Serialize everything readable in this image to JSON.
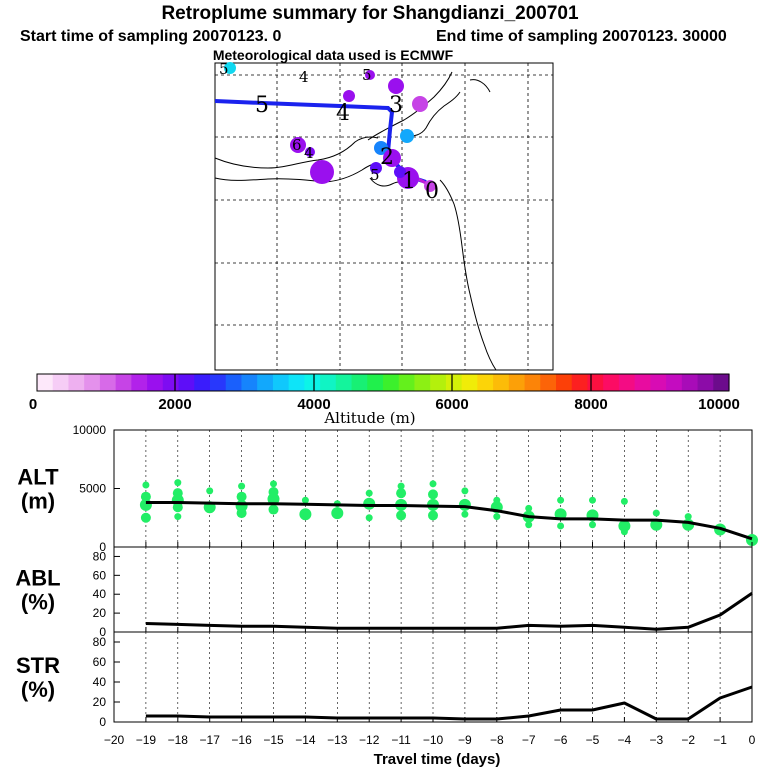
{
  "header": {
    "title": "Retroplume summary for Shangdianzi_200701",
    "start_time": "Start time of sampling 20070123.    0",
    "end_time": "End time of sampling 20070123. 30000",
    "met_data": "Meteorological data used is ECMWF"
  },
  "colorbar": {
    "label": "Altitude  (m)",
    "ticks": [
      "0",
      "2000",
      "4000",
      "6000",
      "8000",
      "10000"
    ],
    "colors": [
      "#fde8fa",
      "#f6cdf6",
      "#eeb0f0",
      "#e491ec",
      "#d76ae8",
      "#c644e6",
      "#b222ea",
      "#9a10ee",
      "#7e0cf2",
      "#5e0ef8",
      "#3a1cfc",
      "#2838fc",
      "#1a60fc",
      "#1684fc",
      "#12a8fc",
      "#10c8fc",
      "#0ee4f8",
      "#0cf4e8",
      "#10f4c4",
      "#14f49c",
      "#18f074",
      "#20f04c",
      "#3cf02c",
      "#64f01c",
      "#8cf014",
      "#b4f00c",
      "#d4f008",
      "#f0ec08",
      "#fcd408",
      "#fcbc08",
      "#fca008",
      "#fc8408",
      "#fc6408",
      "#fc4008",
      "#fc2020",
      "#fc1040",
      "#fc0c64",
      "#f40c84",
      "#e80ca0",
      "#d80cb4",
      "#c40cc0",
      "#a80cb8",
      "#8c0ca8",
      "#6c0c8c"
    ]
  },
  "map": {
    "day_labels": [
      {
        "text": "5",
        "kind": "big"
      },
      {
        "text": "4",
        "kind": "big"
      },
      {
        "text": "3",
        "kind": "big"
      },
      {
        "text": "2",
        "kind": "big"
      },
      {
        "text": "1",
        "kind": "big"
      },
      {
        "text": "0",
        "kind": "big"
      },
      {
        "text": "4",
        "kind": "small"
      },
      {
        "text": "5",
        "kind": "small"
      },
      {
        "text": "6",
        "kind": "small"
      },
      {
        "text": "4",
        "kind": "small"
      },
      {
        "text": "5",
        "kind": "small"
      },
      {
        "text": "5",
        "kind": "small"
      }
    ]
  },
  "chart_data": [
    {
      "type": "line",
      "panel": "ALT",
      "ylabel_line1": "ALT",
      "ylabel_line2": "(m)",
      "ylim": [
        0,
        10000
      ],
      "yticks": [
        "0",
        "5000",
        "10000"
      ],
      "x": [
        -19,
        -18,
        -17,
        -16,
        -15,
        -14,
        -13,
        -12,
        -11,
        -10,
        -9,
        -8,
        -7,
        -6,
        -5,
        -4,
        -3,
        -2,
        -1,
        0
      ],
      "values": [
        3800,
        3800,
        3750,
        3700,
        3700,
        3650,
        3600,
        3550,
        3550,
        3500,
        3450,
        3100,
        2600,
        2400,
        2400,
        2300,
        2300,
        2100,
        1600,
        700
      ],
      "scatter_color": "#22ee66",
      "scatter": [
        {
          "x": -19,
          "ys": [
            5300,
            4300,
            3600,
            2500
          ]
        },
        {
          "x": -18,
          "ys": [
            5500,
            4600,
            4000,
            3400,
            2600
          ]
        },
        {
          "x": -17,
          "ys": [
            4800,
            3400
          ]
        },
        {
          "x": -16,
          "ys": [
            5200,
            4300,
            3500,
            2900
          ]
        },
        {
          "x": -15,
          "ys": [
            5400,
            4700,
            4100,
            3200
          ]
        },
        {
          "x": -14,
          "ys": [
            4000,
            2800
          ]
        },
        {
          "x": -13,
          "ys": [
            3700,
            2900
          ]
        },
        {
          "x": -12,
          "ys": [
            4600,
            3700,
            2500
          ]
        },
        {
          "x": -11,
          "ys": [
            5200,
            4600,
            3600,
            2700
          ]
        },
        {
          "x": -10,
          "ys": [
            5400,
            4500,
            3600,
            2700
          ]
        },
        {
          "x": -9,
          "ys": [
            4800,
            3600,
            2800
          ]
        },
        {
          "x": -8,
          "ys": [
            4000,
            3400,
            2600
          ]
        },
        {
          "x": -7,
          "ys": [
            3300,
            2600,
            1900
          ]
        },
        {
          "x": -6,
          "ys": [
            4000,
            2800,
            1800
          ]
        },
        {
          "x": -5,
          "ys": [
            4000,
            2700,
            1900
          ]
        },
        {
          "x": -4,
          "ys": [
            3900,
            1800,
            1300
          ]
        },
        {
          "x": -3,
          "ys": [
            2900,
            1900
          ]
        },
        {
          "x": -2,
          "ys": [
            2600,
            1900
          ]
        },
        {
          "x": -1,
          "ys": [
            1500
          ]
        },
        {
          "x": 0,
          "ys": [
            800,
            600
          ]
        }
      ]
    },
    {
      "type": "line",
      "panel": "ABL",
      "ylabel_line1": "ABL",
      "ylabel_line2": "(%)",
      "ylim": [
        0,
        90
      ],
      "yticks": [
        "0",
        "20",
        "40",
        "60",
        "80"
      ],
      "x": [
        -19,
        -18,
        -17,
        -16,
        -15,
        -14,
        -13,
        -12,
        -11,
        -10,
        -9,
        -8,
        -7,
        -6,
        -5,
        -4,
        -3,
        -2,
        -1,
        0
      ],
      "values": [
        9,
        8,
        7,
        6,
        6,
        5,
        4,
        4,
        4,
        4,
        4,
        4,
        7,
        6,
        7,
        5,
        3,
        5,
        18,
        41
      ]
    },
    {
      "type": "line",
      "panel": "STR",
      "ylabel_line1": "STR",
      "ylabel_line2": "(%)",
      "ylim": [
        0,
        90
      ],
      "yticks": [
        "0",
        "20",
        "40",
        "60",
        "80"
      ],
      "xlabel": "Travel time (days)",
      "xticks": [
        "−20",
        "−19",
        "−18",
        "−17",
        "−16",
        "−15",
        "−14",
        "−13",
        "−12",
        "−11",
        "−10",
        "−9",
        "−8",
        "−7",
        "−6",
        "−5",
        "−4",
        "−3",
        "−2",
        "−1",
        "0"
      ],
      "x": [
        -19,
        -18,
        -17,
        -16,
        -15,
        -14,
        -13,
        -12,
        -11,
        -10,
        -9,
        -8,
        -7,
        -6,
        -5,
        -4,
        -3,
        -2,
        -1,
        0
      ],
      "values": [
        6,
        6,
        5,
        5,
        5,
        5,
        4,
        4,
        4,
        4,
        3,
        3,
        6,
        12,
        12,
        19,
        3,
        3,
        24,
        35
      ]
    }
  ]
}
